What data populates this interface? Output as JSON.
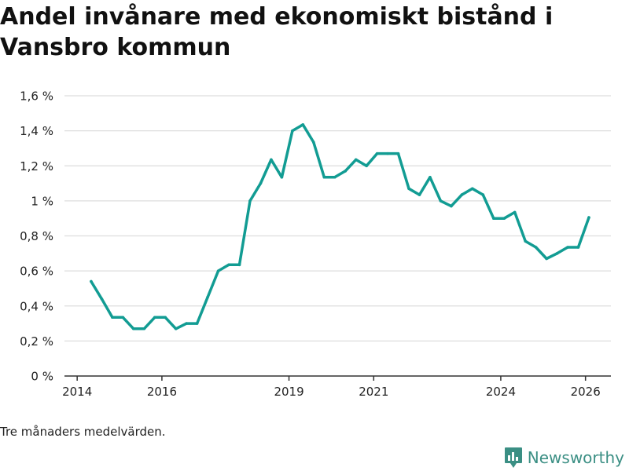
{
  "title": "Andel invånare med ekonomiskt bistånd i Vansbro kommun",
  "note": "Tre månaders medelvärden.",
  "brand": {
    "name": "Newsworthy",
    "icon": "newsworthy-logo-icon"
  },
  "colors": {
    "line": "#129c93",
    "grid": "#dddddd",
    "axis": "#333333",
    "brand": "#3b8f84"
  },
  "chart_data": {
    "type": "line",
    "title": "Andel invånare med ekonomiskt bistånd i Vansbro kommun",
    "xlabel": "",
    "ylabel": "",
    "xlim": [
      2013.7,
      2026.6
    ],
    "ylim": [
      0,
      1.6
    ],
    "x_ticks": [
      {
        "value": 2014,
        "label": "2014"
      },
      {
        "value": 2016,
        "label": "2016"
      },
      {
        "value": 2019,
        "label": "2019"
      },
      {
        "value": 2021,
        "label": "2021"
      },
      {
        "value": 2024,
        "label": "2024"
      },
      {
        "value": 2026,
        "label": "2026"
      }
    ],
    "y_ticks": [
      {
        "value": 0,
        "label": "0 %"
      },
      {
        "value": 0.2,
        "label": "0,2 %"
      },
      {
        "value": 0.4,
        "label": "0,4 %"
      },
      {
        "value": 0.6,
        "label": "0,6 %"
      },
      {
        "value": 0.8,
        "label": "0,8 %"
      },
      {
        "value": 1.0,
        "label": "1 %"
      },
      {
        "value": 1.2,
        "label": "1,2 %"
      },
      {
        "value": 1.4,
        "label": "1,4 %"
      },
      {
        "value": 1.6,
        "label": "1,6 %"
      }
    ],
    "series": [
      {
        "name": "Andel invånare med ekonomiskt bistånd",
        "x": [
          2014.33,
          2014.58,
          2014.83,
          2015.08,
          2015.33,
          2015.58,
          2015.83,
          2016.08,
          2016.33,
          2016.58,
          2016.83,
          2017.08,
          2017.33,
          2017.58,
          2017.83,
          2018.08,
          2018.33,
          2018.58,
          2018.83,
          2019.08,
          2019.33,
          2019.58,
          2019.83,
          2020.08,
          2020.33,
          2020.58,
          2020.83,
          2021.08,
          2021.33,
          2021.58,
          2021.83,
          2022.08,
          2022.33,
          2022.58,
          2022.83,
          2023.08,
          2023.33,
          2023.58,
          2023.83,
          2024.08,
          2024.33,
          2024.58,
          2024.83,
          2025.08,
          2025.33,
          2025.58,
          2025.83,
          2026.08
        ],
        "values": [
          0.54,
          0.44,
          0.335,
          0.335,
          0.27,
          0.27,
          0.335,
          0.335,
          0.27,
          0.3,
          0.3,
          0.45,
          0.6,
          0.635,
          0.635,
          1.0,
          1.1,
          1.235,
          1.135,
          1.4,
          1.435,
          1.335,
          1.135,
          1.135,
          1.17,
          1.235,
          1.2,
          1.27,
          1.27,
          1.27,
          1.07,
          1.035,
          1.135,
          1.0,
          0.97,
          1.035,
          1.07,
          1.035,
          0.9,
          0.9,
          0.935,
          0.77,
          0.735,
          0.67,
          0.7,
          0.735,
          0.735,
          0.905
        ]
      }
    ],
    "grid": true,
    "legend": "none"
  }
}
